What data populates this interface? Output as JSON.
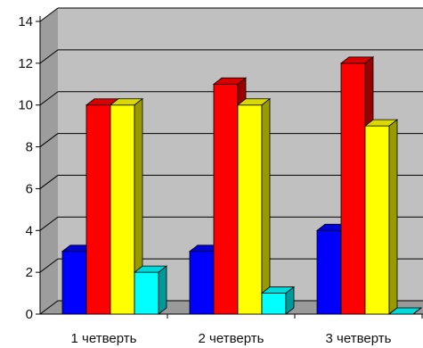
{
  "chart_data": {
    "type": "bar",
    "title": "",
    "xlabel": "",
    "ylabel": "",
    "ylim": [
      0,
      14
    ],
    "yticks": [
      "0",
      "2",
      "4",
      "6",
      "8",
      "10",
      "12",
      "14"
    ],
    "grid": true,
    "categories": [
      "1 четверть",
      "2 четверть",
      "3 четверть"
    ],
    "series": [
      {
        "values": [
          3,
          3,
          4
        ],
        "color": "#0000ff"
      },
      {
        "values": [
          10,
          11,
          12
        ],
        "color": "#ff0000"
      },
      {
        "values": [
          10,
          10,
          9
        ],
        "color": "#ffff00"
      },
      {
        "values": [
          2,
          1,
          0
        ],
        "color": "#00ffff"
      }
    ],
    "colors": {
      "wall": "#c0c0c0",
      "floor": "#9a9a9a",
      "grid": "#000000"
    }
  }
}
